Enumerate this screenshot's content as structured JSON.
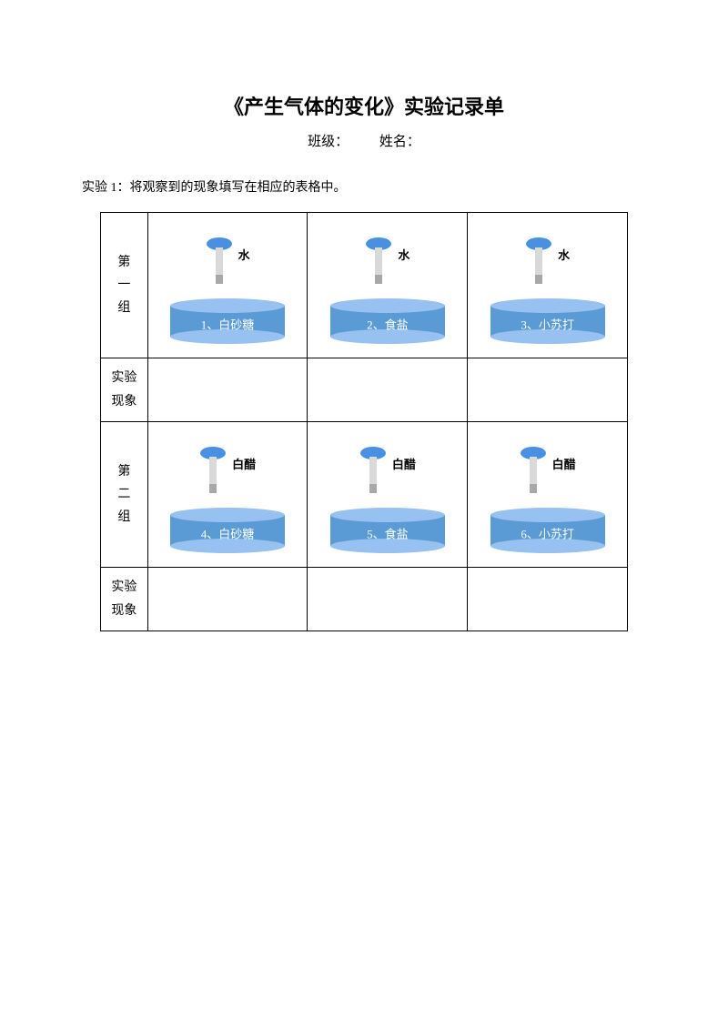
{
  "title": "《产生气体的变化》实验记录单",
  "subtitle": {
    "class_label": "班级：",
    "name_label": "姓名："
  },
  "instruction": "实验 1：将观察到的现象填写在相应的表格中。",
  "groups": [
    {
      "header": "第\n一\n组",
      "cells": [
        {
          "dropper_label": "水",
          "dish_label": "1、白砂糖"
        },
        {
          "dropper_label": "水",
          "dish_label": "2、食盐"
        },
        {
          "dropper_label": "水",
          "dish_label": "3、小苏打"
        }
      ]
    },
    {
      "header": "第\n二\n组",
      "cells": [
        {
          "dropper_label": "白醋",
          "dish_label": "4、白砂糖"
        },
        {
          "dropper_label": "白醋",
          "dish_label": "5、食盐"
        },
        {
          "dropper_label": "白醋",
          "dish_label": "6、小苏打"
        }
      ]
    }
  ],
  "observation_label": "实验\n现象",
  "colors": {
    "dropper_bulb": "#4a90e2",
    "dropper_tube": "#d9d9d9",
    "dropper_liquid": "#a8a8a8",
    "dish_top": "#96c1f0",
    "dish_body": "#5b9bd5",
    "dish_bottom": "#96c1f0",
    "border": "#000000"
  }
}
